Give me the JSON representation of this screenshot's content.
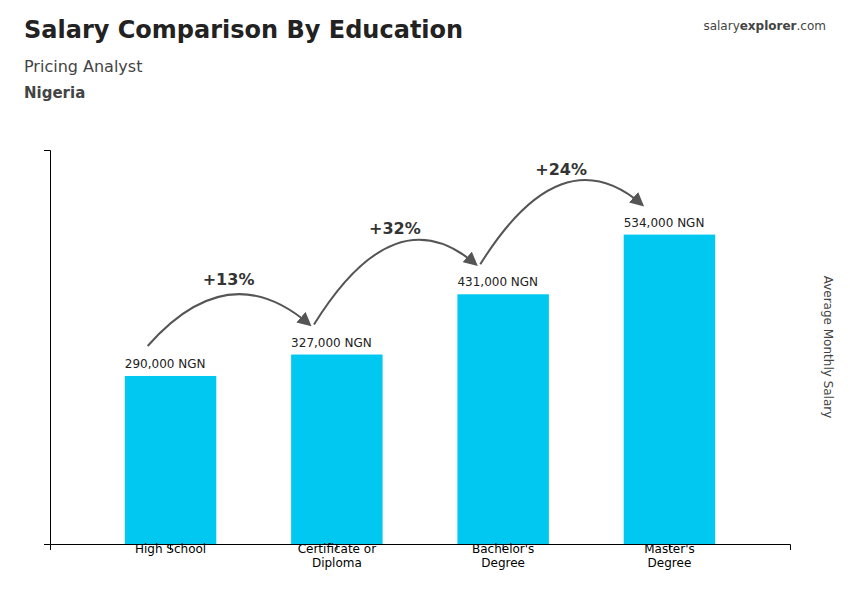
{
  "chart_data": {
    "type": "bar",
    "title": "Salary Comparison By Education",
    "subtitle": [
      "Pricing Analyst",
      "Nigeria"
    ],
    "ylabel": "Average Monthly Salary",
    "categories": [
      "High School",
      "Certificate or\nDiploma",
      "Bachelor's\nDegree",
      "Master's\nDegree"
    ],
    "values": [
      290000,
      327000,
      431000,
      534000
    ],
    "value_labels": [
      "290,000 NGN",
      "327,000 NGN",
      "431,000 NGN",
      "534,000 NGN"
    ],
    "data_labels": true,
    "color": "#00c8f0",
    "ylim": [
      0,
      680000
    ],
    "grid": false,
    "tick_labels": "x",
    "annotations": {
      "changes": [
        "+13%",
        "+32%",
        "+24%"
      ],
      "site": [
        "salary",
        "explorer",
        ".com"
      ]
    }
  }
}
